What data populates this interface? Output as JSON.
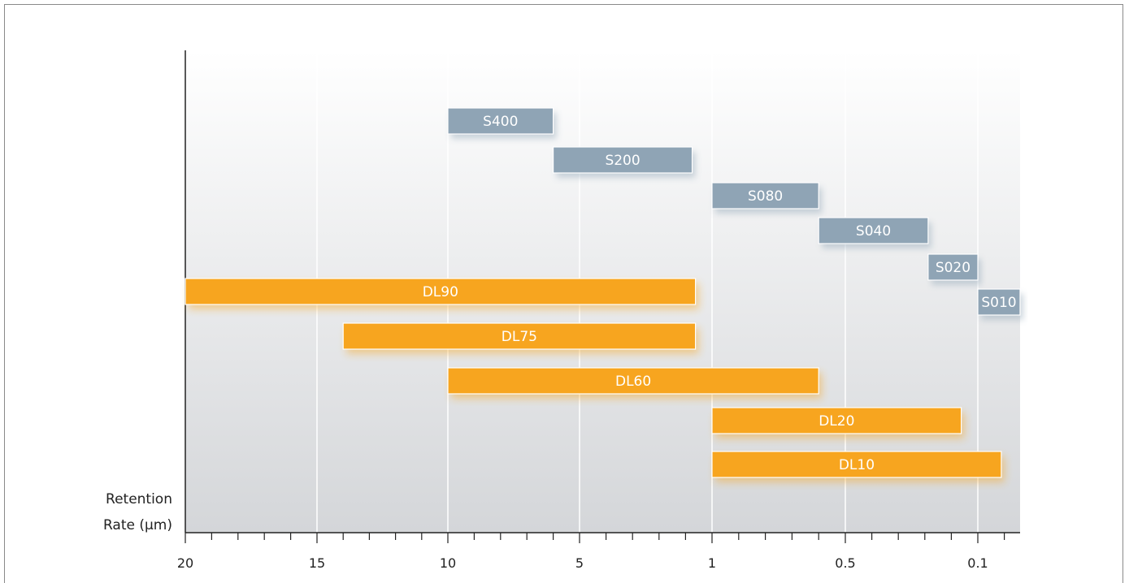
{
  "chart_data": {
    "type": "bar",
    "orientation": "horizontal-range",
    "title": "",
    "xlabel": "",
    "ylabel": [
      "Retention",
      "Rate (µm)"
    ],
    "x_ticks": [
      "20",
      "15",
      "10",
      "5",
      "1",
      "0.5",
      "0.1"
    ],
    "grid": true,
    "series": [
      {
        "group": "S",
        "color": "#8fa4b5",
        "bars": [
          {
            "label": "S400",
            "from": 10,
            "to": 6
          },
          {
            "label": "S200",
            "from": 6,
            "to": 1.6
          },
          {
            "label": "S080",
            "from": 1,
            "to": 0.6
          },
          {
            "label": "S040",
            "from": 0.6,
            "to": 0.25
          },
          {
            "label": "S020",
            "from": 0.25,
            "to": 0.1
          },
          {
            "label": "S010",
            "from": 0.1,
            "to": 0.01
          }
        ]
      },
      {
        "group": "DL",
        "color": "#f7a51f",
        "bars": [
          {
            "label": "DL90",
            "from": 20,
            "to": 1.5
          },
          {
            "label": "DL75",
            "from": 14,
            "to": 1.5
          },
          {
            "label": "DL60",
            "from": 10,
            "to": 0.6
          },
          {
            "label": "DL20",
            "from": 1,
            "to": 0.15
          },
          {
            "label": "DL10",
            "from": 1,
            "to": 0.05
          }
        ]
      }
    ]
  }
}
